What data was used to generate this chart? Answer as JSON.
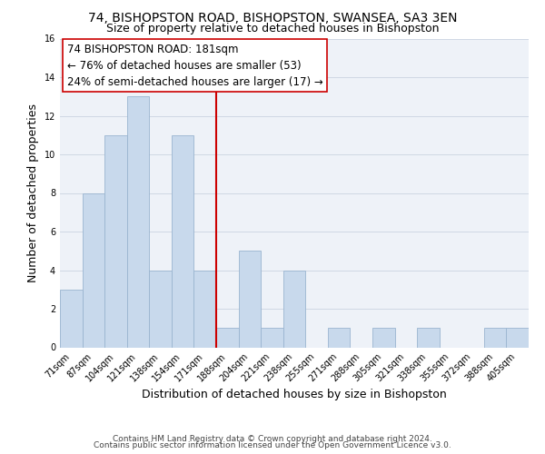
{
  "title1": "74, BISHOPSTON ROAD, BISHOPSTON, SWANSEA, SA3 3EN",
  "title2": "Size of property relative to detached houses in Bishopston",
  "xlabel": "Distribution of detached houses by size in Bishopston",
  "ylabel": "Number of detached properties",
  "bin_labels": [
    "71sqm",
    "87sqm",
    "104sqm",
    "121sqm",
    "138sqm",
    "154sqm",
    "171sqm",
    "188sqm",
    "204sqm",
    "221sqm",
    "238sqm",
    "255sqm",
    "271sqm",
    "288sqm",
    "305sqm",
    "321sqm",
    "338sqm",
    "355sqm",
    "372sqm",
    "388sqm",
    "405sqm"
  ],
  "bar_values": [
    3,
    8,
    11,
    13,
    4,
    11,
    4,
    1,
    5,
    1,
    4,
    0,
    1,
    0,
    1,
    0,
    1,
    0,
    0,
    1,
    1
  ],
  "bar_color": "#c8d9ec",
  "bar_edge_color": "#9ab5d0",
  "reference_line_label": "74 BISHOPSTON ROAD: 181sqm",
  "annotation_line1": "← 76% of detached houses are smaller (53)",
  "annotation_line2": "24% of semi-detached houses are larger (17) →",
  "ylim": [
    0,
    16
  ],
  "yticks": [
    0,
    2,
    4,
    6,
    8,
    10,
    12,
    14,
    16
  ],
  "footer1": "Contains HM Land Registry data © Crown copyright and database right 2024.",
  "footer2": "Contains public sector information licensed under the Open Government Licence v3.0.",
  "box_color": "#ffffff",
  "box_edge_color": "#cc0000",
  "ref_line_color": "#cc0000",
  "title_fontsize": 10,
  "subtitle_fontsize": 9,
  "axis_label_fontsize": 9,
  "tick_fontsize": 7,
  "annotation_fontsize": 8.5,
  "footer_fontsize": 6.5,
  "grid_color": "#d0d8e4",
  "bg_color": "#eef2f8"
}
